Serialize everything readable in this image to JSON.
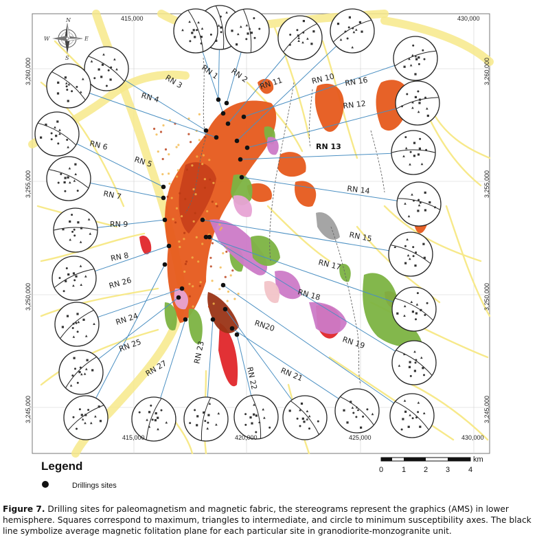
{
  "map": {
    "x_ticks": [
      "415,000",
      "420,000",
      "425,000",
      "430,000"
    ],
    "y_ticks": [
      "3,260,000",
      "3,255,000",
      "3,250,000",
      "3,245,000"
    ],
    "north_arrow": {
      "icon": "compass-rose-icon",
      "cardinals": [
        "N",
        "E",
        "S",
        "W"
      ]
    },
    "colors": {
      "drainage": "#f7e98a",
      "granodiorite": "#e65a1c",
      "granodiorite_dark": "#c8401a",
      "red_unit": "#e0262a",
      "brown_unit": "#9a3416",
      "green_unit": "#7cb342",
      "pink_unit": "#e7a3d4",
      "magenta_unit": "#cc7ac7",
      "grey_unit": "#a0a0a0",
      "light_pink_unit": "#f2c4c8",
      "site_line": "#4a8fc2"
    },
    "sites": [
      {
        "label": "RN 1",
        "bold": false
      },
      {
        "label": "RN 2",
        "bold": false
      },
      {
        "label": "RN 3",
        "bold": false
      },
      {
        "label": "RN 4",
        "bold": false
      },
      {
        "label": "RN 5",
        "bold": false
      },
      {
        "label": "RN 6",
        "bold": false
      },
      {
        "label": "RN 7",
        "bold": false
      },
      {
        "label": "RN 8",
        "bold": false
      },
      {
        "label": "RN 9",
        "bold": false
      },
      {
        "label": "RN 10",
        "bold": false
      },
      {
        "label": "RN 11",
        "bold": false
      },
      {
        "label": "RN 12",
        "bold": false
      },
      {
        "label": "RN 13",
        "bold": true
      },
      {
        "label": "RN 14",
        "bold": false
      },
      {
        "label": "RN 15",
        "bold": false
      },
      {
        "label": "RN 16",
        "bold": false
      },
      {
        "label": "RN 17",
        "bold": false
      },
      {
        "label": "RN 18",
        "bold": false
      },
      {
        "label": "RN 19",
        "bold": false
      },
      {
        "label": "RN20",
        "bold": false
      },
      {
        "label": "RN 21",
        "bold": false
      },
      {
        "label": "RN 22",
        "bold": false
      },
      {
        "label": "RN 23",
        "bold": false
      },
      {
        "label": "RN 24",
        "bold": false
      },
      {
        "label": "RN 25",
        "bold": false
      },
      {
        "label": "RN 26",
        "bold": false
      },
      {
        "label": "RN 27",
        "bold": false
      }
    ]
  },
  "legend": {
    "title": "Legend",
    "item": "Drillings sites"
  },
  "scale_bar": {
    "unit": "km",
    "ticks": [
      "0",
      "1",
      "2",
      "3",
      "4"
    ]
  },
  "caption": {
    "label": "Figure 7.",
    "text": " Drilling sites for paleomagnetism and magnetic fabric, the stereograms represent the graphics (AMS) in lower hemisphere. Squares correspond to maximum, triangles to intermediate, and circle to minimum susceptibility axes. The black line symbolize average magnetic folitation plane for each particular site in granodiorite-monzogranite unit."
  }
}
